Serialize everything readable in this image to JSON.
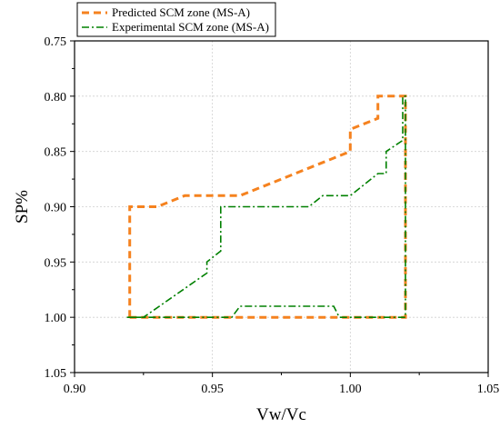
{
  "chart_data": {
    "type": "line",
    "xlabel": "Vw/Vc",
    "ylabel": "SP%",
    "xlim": [
      0.9,
      1.05
    ],
    "ylim": [
      0.75,
      1.05
    ],
    "y_reversed": true,
    "grid": true,
    "legend_position": "top-left",
    "x_ticks": [
      "0.90",
      "0.95",
      "1.00",
      "1.05"
    ],
    "y_ticks": [
      "0.75",
      "0.80",
      "0.85",
      "0.90",
      "0.95",
      "1.00",
      "1.05"
    ],
    "series": [
      {
        "name": "Predicted SCM zone (MS-A)",
        "color": "#f5821f",
        "style": "dashed",
        "points": [
          [
            0.92,
            1.0
          ],
          [
            0.92,
            0.9
          ],
          [
            0.925,
            0.9
          ],
          [
            0.93,
            0.9
          ],
          [
            0.94,
            0.89
          ],
          [
            0.95,
            0.89
          ],
          [
            0.96,
            0.89
          ],
          [
            0.97,
            0.88
          ],
          [
            0.98,
            0.87
          ],
          [
            0.99,
            0.86
          ],
          [
            1.0,
            0.85
          ],
          [
            1.0,
            0.83
          ],
          [
            1.01,
            0.82
          ],
          [
            1.01,
            0.8
          ],
          [
            1.02,
            0.8
          ],
          [
            1.02,
            1.0
          ],
          [
            0.92,
            1.0
          ]
        ]
      },
      {
        "name": "Experimental SCM zone (MS-A)",
        "color": "#008000",
        "style": "dashdot",
        "points": [
          [
            0.919,
            1.0
          ],
          [
            0.925,
            1.0
          ],
          [
            0.948,
            0.96
          ],
          [
            0.948,
            0.95
          ],
          [
            0.953,
            0.94
          ],
          [
            0.953,
            0.9
          ],
          [
            0.985,
            0.9
          ],
          [
            0.99,
            0.89
          ],
          [
            1.0,
            0.89
          ],
          [
            1.01,
            0.87
          ],
          [
            1.013,
            0.87
          ],
          [
            1.013,
            0.85
          ],
          [
            1.019,
            0.84
          ],
          [
            1.019,
            0.8
          ],
          [
            1.02,
            0.8
          ],
          [
            1.02,
            1.0
          ],
          [
            0.996,
            1.0
          ],
          [
            0.994,
            0.99
          ],
          [
            0.99,
            0.99
          ],
          [
            0.96,
            0.99
          ],
          [
            0.957,
            1.0
          ],
          [
            0.919,
            1.0
          ]
        ]
      }
    ]
  }
}
